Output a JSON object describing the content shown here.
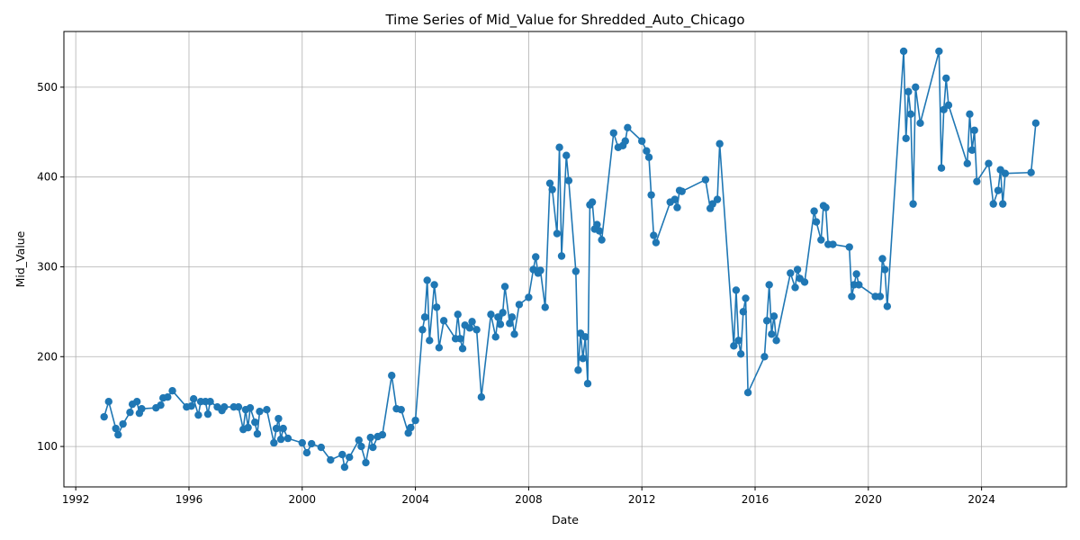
{
  "chart_data": {
    "type": "line",
    "title": "Time Series of Mid_Value for Shredded_Auto_Chicago",
    "xlabel": "Date",
    "ylabel": "Mid_Value",
    "x_ticks": [
      "1992",
      "1996",
      "2000",
      "2004",
      "2008",
      "2012",
      "2016",
      "2020",
      "2024"
    ],
    "y_ticks": [
      "100",
      "200",
      "300",
      "400",
      "500"
    ],
    "xlim": [
      "1991-08-01",
      "2027-01-01"
    ],
    "ylim": [
      55,
      562
    ],
    "grid": true,
    "color": "#1f77b4",
    "marker": "circle",
    "series": [
      {
        "name": "",
        "points": [
          [
            "1993-01-01",
            133
          ],
          [
            "1993-03-01",
            150
          ],
          [
            "1993-06-01",
            120
          ],
          [
            "1993-07-01",
            113
          ],
          [
            "1993-09-01",
            125
          ],
          [
            "1993-12-01",
            138
          ],
          [
            "1994-01-01",
            147
          ],
          [
            "1994-03-01",
            150
          ],
          [
            "1994-04-01",
            137
          ],
          [
            "1994-05-01",
            142
          ],
          [
            "1994-11-01",
            143
          ],
          [
            "1995-01-01",
            146
          ],
          [
            "1995-02-01",
            154
          ],
          [
            "1995-04-01",
            155
          ],
          [
            "1995-06-01",
            162
          ],
          [
            "1995-12-01",
            144
          ],
          [
            "1996-02-01",
            145
          ],
          [
            "1996-03-01",
            153
          ],
          [
            "1996-05-01",
            135
          ],
          [
            "1996-06-01",
            150
          ],
          [
            "1996-08-01",
            150
          ],
          [
            "1996-09-01",
            136
          ],
          [
            "1996-10-01",
            150
          ],
          [
            "1997-01-01",
            144
          ],
          [
            "1997-03-01",
            140
          ],
          [
            "1997-04-01",
            144
          ],
          [
            "1997-08-01",
            144
          ],
          [
            "1997-10-01",
            144
          ],
          [
            "1997-12-01",
            119
          ],
          [
            "1998-01-01",
            141
          ],
          [
            "1998-02-01",
            121
          ],
          [
            "1998-03-01",
            143
          ],
          [
            "1998-05-01",
            127
          ],
          [
            "1998-06-01",
            114
          ],
          [
            "1998-07-01",
            139
          ],
          [
            "1998-10-01",
            141
          ],
          [
            "1999-01-01",
            104
          ],
          [
            "1999-02-01",
            120
          ],
          [
            "1999-03-01",
            131
          ],
          [
            "1999-04-01",
            108
          ],
          [
            "1999-05-01",
            120
          ],
          [
            "1999-07-01",
            109
          ],
          [
            "2000-01-01",
            104
          ],
          [
            "2000-03-01",
            93
          ],
          [
            "2000-05-01",
            103
          ],
          [
            "2000-09-01",
            99
          ],
          [
            "2001-01-01",
            85
          ],
          [
            "2001-06-01",
            91
          ],
          [
            "2001-07-01",
            77
          ],
          [
            "2001-09-01",
            88
          ],
          [
            "2002-01-01",
            107
          ],
          [
            "2002-02-01",
            100
          ],
          [
            "2002-04-01",
            82
          ],
          [
            "2002-06-01",
            110
          ],
          [
            "2002-07-01",
            99
          ],
          [
            "2002-09-01",
            111
          ],
          [
            "2002-11-01",
            113
          ],
          [
            "2003-03-01",
            179
          ],
          [
            "2003-05-01",
            142
          ],
          [
            "2003-07-01",
            141
          ],
          [
            "2003-10-01",
            115
          ],
          [
            "2003-11-01",
            121
          ],
          [
            "2004-01-01",
            129
          ],
          [
            "2004-04-01",
            230
          ],
          [
            "2004-05-01",
            244
          ],
          [
            "2004-06-01",
            285
          ],
          [
            "2004-07-01",
            218
          ],
          [
            "2004-09-01",
            280
          ],
          [
            "2004-10-01",
            255
          ],
          [
            "2004-11-01",
            210
          ],
          [
            "2005-01-01",
            240
          ],
          [
            "2005-06-01",
            220
          ],
          [
            "2005-07-01",
            247
          ],
          [
            "2005-08-01",
            220
          ],
          [
            "2005-09-01",
            209
          ],
          [
            "2005-10-01",
            235
          ],
          [
            "2005-12-01",
            232
          ],
          [
            "2006-01-01",
            239
          ],
          [
            "2006-03-01",
            230
          ],
          [
            "2006-05-01",
            155
          ],
          [
            "2006-09-01",
            247
          ],
          [
            "2006-11-01",
            222
          ],
          [
            "2006-12-01",
            244
          ],
          [
            "2007-01-01",
            236
          ],
          [
            "2007-02-01",
            249
          ],
          [
            "2007-03-01",
            278
          ],
          [
            "2007-05-01",
            237
          ],
          [
            "2007-06-01",
            244
          ],
          [
            "2007-07-01",
            225
          ],
          [
            "2007-09-01",
            258
          ],
          [
            "2008-01-01",
            266
          ],
          [
            "2008-03-01",
            297
          ],
          [
            "2008-04-01",
            311
          ],
          [
            "2008-05-01",
            293
          ],
          [
            "2008-06-01",
            296
          ],
          [
            "2008-08-01",
            255
          ],
          [
            "2008-10-01",
            393
          ],
          [
            "2008-11-01",
            386
          ],
          [
            "2009-01-01",
            337
          ],
          [
            "2009-02-01",
            433
          ],
          [
            "2009-03-01",
            312
          ],
          [
            "2009-05-01",
            424
          ],
          [
            "2009-06-01",
            396
          ],
          [
            "2009-09-01",
            295
          ],
          [
            "2009-10-01",
            185
          ],
          [
            "2009-11-01",
            226
          ],
          [
            "2009-12-01",
            198
          ],
          [
            "2010-01-01",
            222
          ],
          [
            "2010-02-01",
            170
          ],
          [
            "2010-03-01",
            369
          ],
          [
            "2010-04-01",
            372
          ],
          [
            "2010-05-01",
            342
          ],
          [
            "2010-06-01",
            347
          ],
          [
            "2010-07-01",
            340
          ],
          [
            "2010-08-01",
            330
          ],
          [
            "2011-01-01",
            449
          ],
          [
            "2011-03-01",
            433
          ],
          [
            "2011-05-01",
            435
          ],
          [
            "2011-06-01",
            440
          ],
          [
            "2011-07-01",
            455
          ],
          [
            "2012-01-01",
            440
          ],
          [
            "2012-03-01",
            429
          ],
          [
            "2012-04-01",
            422
          ],
          [
            "2012-05-01",
            380
          ],
          [
            "2012-06-01",
            335
          ],
          [
            "2012-07-01",
            327
          ],
          [
            "2013-01-01",
            372
          ],
          [
            "2013-03-01",
            375
          ],
          [
            "2013-04-01",
            366
          ],
          [
            "2013-05-01",
            385
          ],
          [
            "2013-06-01",
            384
          ],
          [
            "2014-04-01",
            397
          ],
          [
            "2014-06-01",
            365
          ],
          [
            "2014-07-01",
            370
          ],
          [
            "2014-09-01",
            375
          ],
          [
            "2014-10-01",
            437
          ],
          [
            "2015-04-01",
            212
          ],
          [
            "2015-05-01",
            274
          ],
          [
            "2015-06-01",
            218
          ],
          [
            "2015-07-01",
            203
          ],
          [
            "2015-08-01",
            250
          ],
          [
            "2015-09-01",
            265
          ],
          [
            "2015-10-01",
            160
          ],
          [
            "2016-05-01",
            200
          ],
          [
            "2016-06-01",
            240
          ],
          [
            "2016-07-01",
            280
          ],
          [
            "2016-08-01",
            225
          ],
          [
            "2016-09-01",
            245
          ],
          [
            "2016-10-01",
            218
          ],
          [
            "2017-04-01",
            293
          ],
          [
            "2017-06-01",
            277
          ],
          [
            "2017-07-01",
            297
          ],
          [
            "2017-08-01",
            287
          ],
          [
            "2017-10-01",
            283
          ],
          [
            "2018-02-01",
            362
          ],
          [
            "2018-03-01",
            350
          ],
          [
            "2018-05-01",
            330
          ],
          [
            "2018-06-01",
            368
          ],
          [
            "2018-07-01",
            366
          ],
          [
            "2018-08-01",
            325
          ],
          [
            "2018-10-01",
            325
          ],
          [
            "2019-05-01",
            322
          ],
          [
            "2019-06-01",
            267
          ],
          [
            "2019-07-01",
            280
          ],
          [
            "2019-08-01",
            292
          ],
          [
            "2019-09-01",
            280
          ],
          [
            "2020-04-01",
            267
          ],
          [
            "2020-06-01",
            267
          ],
          [
            "2020-07-01",
            309
          ],
          [
            "2020-08-01",
            297
          ],
          [
            "2020-09-01",
            256
          ],
          [
            "2021-04-01",
            540
          ],
          [
            "2021-05-01",
            443
          ],
          [
            "2021-06-01",
            495
          ],
          [
            "2021-07-01",
            470
          ],
          [
            "2021-08-01",
            370
          ],
          [
            "2021-09-01",
            500
          ],
          [
            "2021-11-01",
            460
          ],
          [
            "2022-07-01",
            540
          ],
          [
            "2022-08-01",
            410
          ],
          [
            "2022-09-01",
            475
          ],
          [
            "2022-10-01",
            510
          ],
          [
            "2022-11-01",
            480
          ],
          [
            "2023-07-01",
            415
          ],
          [
            "2023-08-01",
            470
          ],
          [
            "2023-09-01",
            430
          ],
          [
            "2023-10-01",
            452
          ],
          [
            "2023-11-01",
            395
          ],
          [
            "2024-04-01",
            415
          ],
          [
            "2024-06-01",
            370
          ],
          [
            "2024-08-01",
            385
          ],
          [
            "2024-09-01",
            408
          ],
          [
            "2024-10-01",
            370
          ],
          [
            "2024-11-01",
            404
          ],
          [
            "2025-10-01",
            405
          ],
          [
            "2025-12-01",
            460
          ]
        ]
      }
    ]
  }
}
